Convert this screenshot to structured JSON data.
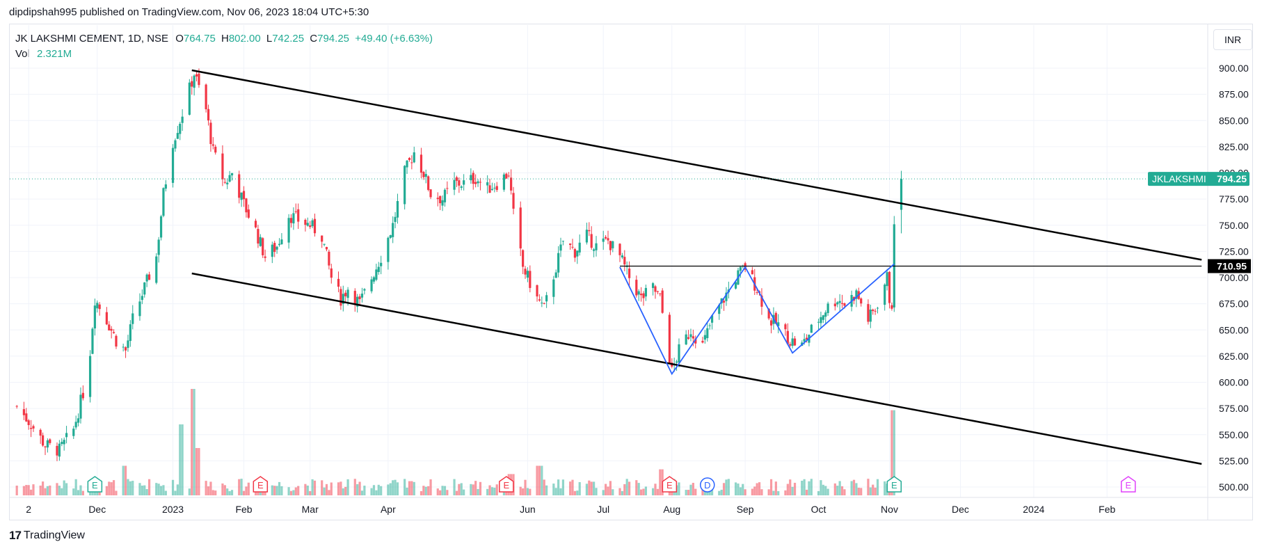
{
  "header": {
    "published_line": "dipdipshah995 published on TradingView.com, Nov 06, 2023 18:04 UTC+5:30"
  },
  "legend": {
    "symbol": "JK LAKSHMI CEMENT, 1D, NSE",
    "open_label": "O",
    "open": "764.75",
    "high_label": "H",
    "high": "802.00",
    "low_label": "L",
    "low": "742.25",
    "close_label": "C",
    "close": "794.25",
    "change": "+49.40 (+6.63%)",
    "vol_label": "Vol",
    "vol": "2.321M"
  },
  "currency_button": "INR",
  "footer": {
    "logo": "17",
    "brand": "TradingView"
  },
  "chart_data": {
    "type": "candlestick",
    "ticker_label": "JKLAKSHMI",
    "last_price": 794.25,
    "last_price_text": "794.25",
    "neckline": 710.95,
    "neckline_text": "710.95",
    "y_axis": {
      "min": 500,
      "max": 900,
      "step": 25,
      "ticks": [
        "900.00",
        "875.00",
        "850.00",
        "825.00",
        "800.00",
        "775.00",
        "750.00",
        "725.00",
        "700.00",
        "675.00",
        "650.00",
        "625.00",
        "600.00",
        "575.00",
        "550.00",
        "525.00",
        "500.00"
      ]
    },
    "x_axis": {
      "ticks": [
        "2",
        "Dec",
        "2023",
        "Feb",
        "Mar",
        "Apr",
        "Jun",
        "Jul",
        "Aug",
        "Sep",
        "Oct",
        "Nov",
        "Dec",
        "2024",
        "Feb"
      ]
    },
    "price_path": [
      [
        "2022-10-28",
        577
      ],
      [
        "2022-11-03",
        560
      ],
      [
        "2022-11-09",
        540
      ],
      [
        "2022-11-15",
        535
      ],
      [
        "2022-11-21",
        555
      ],
      [
        "2022-11-25",
        590
      ],
      [
        "2022-11-28",
        630
      ],
      [
        "2022-11-30",
        680
      ],
      [
        "2022-12-05",
        660
      ],
      [
        "2022-12-09",
        640
      ],
      [
        "2022-12-13",
        630
      ],
      [
        "2022-12-16",
        660
      ],
      [
        "2022-12-21",
        690
      ],
      [
        "2022-12-26",
        720
      ],
      [
        "2022-12-29",
        780
      ],
      [
        "2023-01-02",
        830
      ],
      [
        "2023-01-05",
        850
      ],
      [
        "2023-01-09",
        880
      ],
      [
        "2023-01-11",
        895
      ],
      [
        "2023-01-16",
        860
      ],
      [
        "2023-01-19",
        820
      ],
      [
        "2023-01-24",
        790
      ],
      [
        "2023-01-27",
        800
      ],
      [
        "2023-02-01",
        770
      ],
      [
        "2023-02-06",
        745
      ],
      [
        "2023-02-10",
        720
      ],
      [
        "2023-02-15",
        730
      ],
      [
        "2023-02-20",
        760
      ],
      [
        "2023-02-24",
        755
      ],
      [
        "2023-03-01",
        750
      ],
      [
        "2023-03-06",
        740
      ],
      [
        "2023-03-10",
        700
      ],
      [
        "2023-03-14",
        680
      ],
      [
        "2023-03-17",
        690
      ],
      [
        "2023-03-22",
        675
      ],
      [
        "2023-03-27",
        700
      ],
      [
        "2023-03-31",
        720
      ],
      [
        "2023-04-05",
        750
      ],
      [
        "2023-04-10",
        800
      ],
      [
        "2023-04-14",
        820
      ],
      [
        "2023-04-18",
        800
      ],
      [
        "2023-04-21",
        780
      ],
      [
        "2023-04-26",
        775
      ],
      [
        "2023-05-01",
        790
      ],
      [
        "2023-05-05",
        790
      ],
      [
        "2023-05-10",
        795
      ],
      [
        "2023-05-15",
        785
      ],
      [
        "2023-05-19",
        790
      ],
      [
        "2023-05-24",
        800
      ],
      [
        "2023-05-26",
        760
      ],
      [
        "2023-05-30",
        710
      ],
      [
        "2023-06-05",
        680
      ],
      [
        "2023-06-08",
        670
      ],
      [
        "2023-06-13",
        710
      ],
      [
        "2023-06-16",
        735
      ],
      [
        "2023-06-21",
        725
      ],
      [
        "2023-06-26",
        740
      ],
      [
        "2023-06-30",
        730
      ],
      [
        "2023-07-05",
        735
      ],
      [
        "2023-07-10",
        720
      ],
      [
        "2023-07-14",
        700
      ],
      [
        "2023-07-19",
        680
      ],
      [
        "2023-07-24",
        690
      ],
      [
        "2023-07-27",
        680
      ],
      [
        "2023-08-01",
        610
      ],
      [
        "2023-08-04",
        630
      ],
      [
        "2023-08-09",
        650
      ],
      [
        "2023-08-14",
        635
      ],
      [
        "2023-08-18",
        660
      ],
      [
        "2023-08-23",
        680
      ],
      [
        "2023-08-28",
        700
      ],
      [
        "2023-09-01",
        710
      ],
      [
        "2023-09-06",
        690
      ],
      [
        "2023-09-11",
        660
      ],
      [
        "2023-09-15",
        655
      ],
      [
        "2023-09-20",
        640
      ],
      [
        "2023-09-25",
        635
      ],
      [
        "2023-09-29",
        650
      ],
      [
        "2023-10-05",
        670
      ],
      [
        "2023-10-10",
        680
      ],
      [
        "2023-10-13",
        675
      ],
      [
        "2023-10-18",
        685
      ],
      [
        "2023-10-23",
        660
      ],
      [
        "2023-10-26",
        670
      ],
      [
        "2023-10-31",
        700
      ],
      [
        "2023-11-01",
        680
      ],
      [
        "2023-11-02",
        675
      ],
      [
        "2023-11-03",
        745
      ],
      [
        "2023-11-06",
        794
      ]
    ],
    "volume_peaks": [
      [
        "2022-12-12",
        0.25
      ],
      [
        "2023-01-06",
        0.6
      ],
      [
        "2023-01-11",
        0.9
      ],
      [
        "2023-01-13",
        0.4
      ],
      [
        "2023-05-25",
        0.18
      ],
      [
        "2023-06-06",
        0.25
      ],
      [
        "2023-07-28",
        0.22
      ],
      [
        "2023-11-03",
        0.72
      ],
      [
        "2023-11-06",
        0.45
      ]
    ],
    "trendlines": {
      "channel_upper": [
        [
          "2023-01-10",
          898
        ],
        [
          "2024-03-12",
          717
        ]
      ],
      "channel_lower": [
        [
          "2023-01-10",
          704
        ],
        [
          "2024-03-12",
          522
        ]
      ],
      "neckline": [
        [
          "2023-07-10",
          710.95
        ],
        [
          "2024-03-12",
          710.95
        ]
      ]
    },
    "pattern_w": [
      [
        "2023-07-10",
        710
      ],
      [
        "2023-08-01",
        608
      ],
      [
        "2023-09-01",
        710
      ],
      [
        "2023-09-21",
        628
      ],
      [
        "2023-11-03",
        713
      ]
    ],
    "event_markers": [
      {
        "date": "2022-11-30",
        "label": "E",
        "color": "#22ab94"
      },
      {
        "date": "2023-02-08",
        "label": "E",
        "color": "#f23645"
      },
      {
        "date": "2023-05-23",
        "label": "E",
        "color": "#f23645"
      },
      {
        "date": "2023-07-31",
        "label": "E",
        "color": "#f23645"
      },
      {
        "date": "2023-08-16",
        "label": "D",
        "color": "#2962ff"
      },
      {
        "date": "2023-11-03",
        "label": "E",
        "color": "#22ab94"
      },
      {
        "date": "2024-02-10",
        "label": "E",
        "color": "#e040fb"
      }
    ]
  }
}
